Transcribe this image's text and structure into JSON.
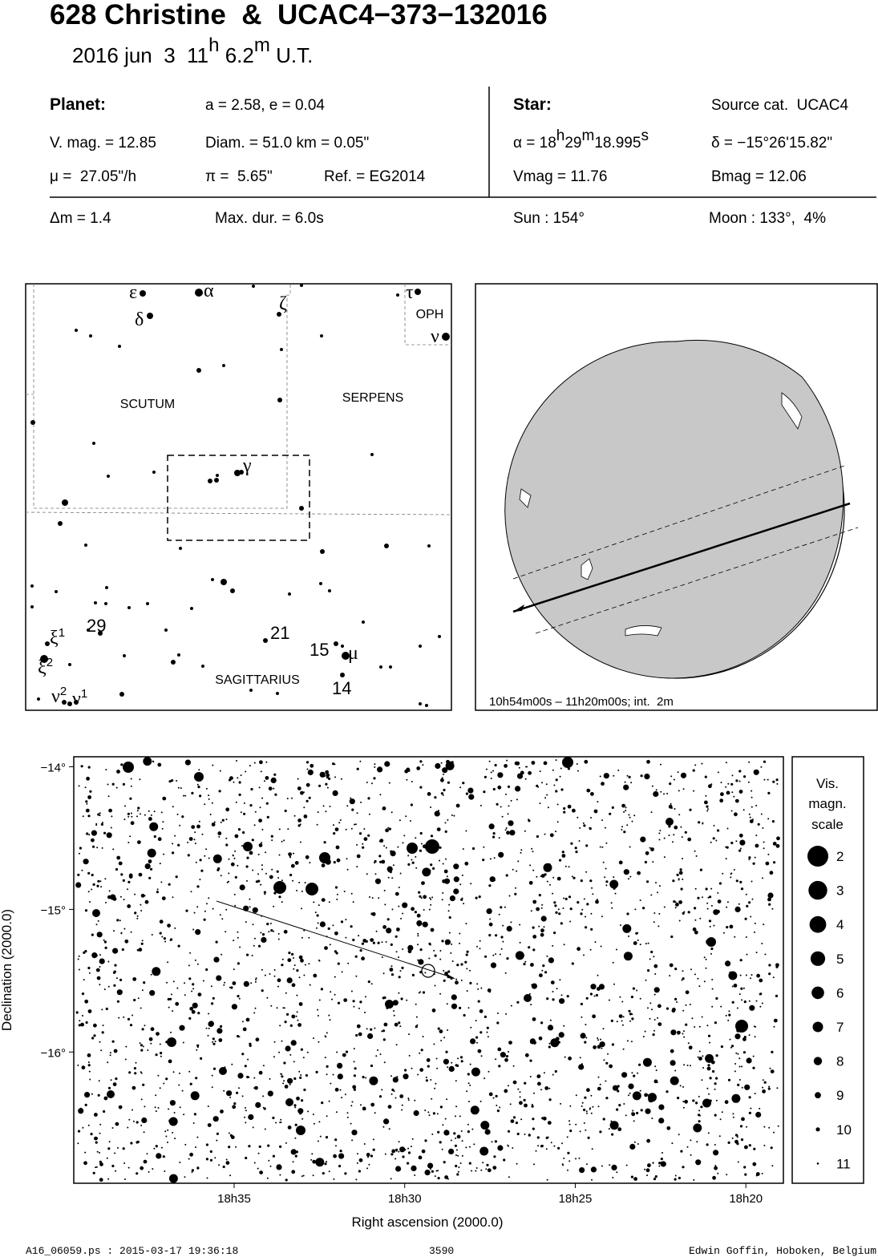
{
  "header": {
    "title": "628 Christine  &  UCAC4−373−132016",
    "date": "2016 jun  3  11",
    "hour_unit": "h",
    "minutes": " 6.2",
    "minute_unit": "m",
    "time_scale": " U.T."
  },
  "planet": {
    "label": "Planet:",
    "orbit": "a = 2.58, e = 0.04",
    "vmag": "V. mag. = 12.85",
    "diameter": "Diam. = 51.0 km = 0.05\"",
    "motion": "μ =  27.05\"/h",
    "parallax": "π =  5.65\"",
    "reference": "Ref. = EG2014"
  },
  "star": {
    "label": "Star:",
    "catalog": "Source cat.  UCAC4",
    "ra": [
      "α = 18",
      "h",
      "29",
      "m",
      "18.995",
      "s"
    ],
    "dec": "δ = −15°26'15.82\"",
    "vmag": "Vmag = 11.76",
    "bmag": "Bmag = 12.06"
  },
  "event": {
    "delta_mag": "Δm = 1.4",
    "max_duration": "Max. dur. = 6.0s",
    "sun": "Sun : 154°",
    "moon": "Moon : 133°,  4%"
  },
  "finder": {
    "constellations": [
      "SCUTUM",
      "SERPENS",
      "OPH",
      "SAGITTARIUS"
    ],
    "stars": [
      {
        "text": "ε"
      },
      {
        "text": "α"
      },
      {
        "text": "δ"
      },
      {
        "text": "ζ"
      },
      {
        "text": "τ"
      },
      {
        "text": "ν"
      },
      {
        "text": "γ"
      },
      {
        "text": "ξ",
        "sup": "1"
      },
      {
        "text": "ξ",
        "sup": "2"
      },
      {
        "text": "ν",
        "sup": "2"
      },
      {
        "text": "ν",
        "sup": "1"
      },
      {
        "text": "μ"
      },
      {
        "text": "29"
      },
      {
        "text": "21"
      },
      {
        "text": "15"
      },
      {
        "text": "14"
      }
    ]
  },
  "globe": {
    "caption": "10h54m00s – 11h20m00s; int.  2m"
  },
  "star_chart": {
    "xlabel": "Right ascension (2000.0)",
    "ylabel": "Declination (2000.0)",
    "xlim": [
      1119.7,
      1098.9
    ],
    "ylim": [
      -16.92,
      -13.93
    ],
    "xticks": [
      {
        "value": 1115,
        "label": "18h35"
      },
      {
        "value": 1110,
        "label": "18h30"
      },
      {
        "value": 1105,
        "label": "18h25"
      },
      {
        "value": 1100,
        "label": "18h20"
      }
    ],
    "yticks": [
      {
        "value": -14,
        "label": "−14°"
      },
      {
        "value": -15,
        "label": "−15°"
      },
      {
        "value": -16,
        "label": "−16°"
      }
    ],
    "legend": {
      "title": [
        "Vis.",
        "magn.",
        "scale"
      ],
      "magnitudes": [
        2,
        3,
        4,
        5,
        6,
        7,
        8,
        9,
        10,
        11
      ]
    }
  },
  "footer": {
    "file": "A16_06059.ps : 2015-03-17 19:36:18",
    "number": "3590",
    "author": "Edwin Goffin, Hoboken, Belgium"
  }
}
